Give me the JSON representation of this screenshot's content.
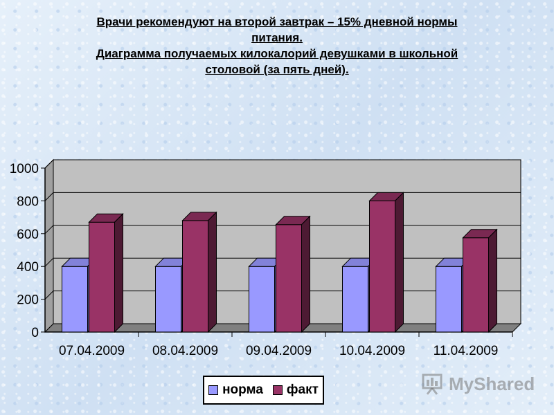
{
  "title": {
    "line1": "Врачи рекомендуют на второй завтрак – 15% дневной нормы",
    "line2": "питания.",
    "line3": "Диаграмма получаемых килокалорий девушками в школьной",
    "line4": "столовой (за пять дней)."
  },
  "watermark": {
    "text": "MyShared",
    "icon": "presentation-board-icon"
  },
  "colors": {
    "norma": "#9999ff",
    "fakt": "#993366",
    "plot_bg": "#c0c0c0"
  },
  "chart_data": {
    "type": "bar",
    "style": "3d-clustered-column",
    "categories": [
      "07.04.2009",
      "08.04.2009",
      "09.04.2009",
      "10.04.2009",
      "11.04.2009"
    ],
    "series": [
      {
        "name": "норма",
        "values": [
          400,
          400,
          400,
          400,
          400
        ]
      },
      {
        "name": "факт",
        "values": [
          670,
          680,
          655,
          800,
          575
        ]
      }
    ],
    "ylim": [
      0,
      1000
    ],
    "yticks": [
      "0",
      "200",
      "400",
      "600",
      "800",
      "1000"
    ],
    "grid": true,
    "legend": "bottom"
  }
}
